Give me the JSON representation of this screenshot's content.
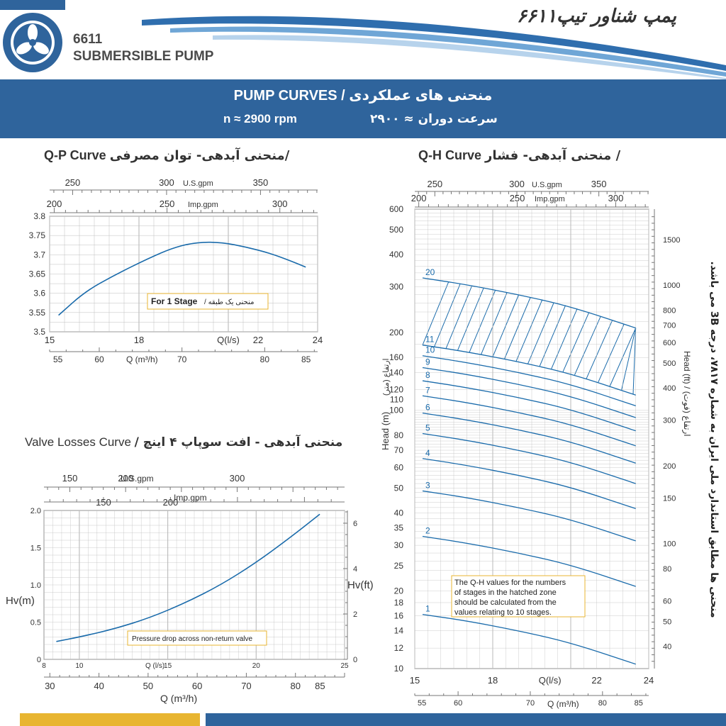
{
  "header": {
    "model_line1": "6611",
    "model_line2": "SUBMERSIBLE PUMP",
    "title_fa": "پمپ شناور تیپ۶۶۱۱"
  },
  "banner": {
    "title": "PUMP CURVES  /  منحنی های عملکردی",
    "speed_en": "n ≈ 2900 rpm",
    "speed_fa": "سرعت دوران ≈ ۲۹۰۰"
  },
  "side_note": "منحنی ها مطابق استاندارد ملی ایران به شماره ۷۸۱۷، درجه 3B می باشد.",
  "colors": {
    "brand_blue": "#2f649c",
    "curve_blue": "#1a6bab",
    "accent_yellow": "#e8b531",
    "grid": "#bfbfbf"
  },
  "qp": {
    "title_en": "Q-P Curve",
    "title_fa": "منحنی آبدهی- توان مصرفی/",
    "note_en": "For 1 Stage",
    "note_fa": " / منحنی یک طبقه"
  },
  "qh": {
    "title_en": "Q-H Curve",
    "title_fa": "منحنی آبدهی- فشار /",
    "note": [
      "The Q-H values for the numbers",
      "of stages in the hatched zone",
      "should be calculated from the",
      "values relating to 10 stages."
    ]
  },
  "valve": {
    "title_en": "Valve Losses Curve",
    "title_fa": "/ منحنی آبدهی - افت سوپاپ ۴ اینچ",
    "note": "Pressure drop across non-return valve"
  },
  "chart_data": [
    {
      "type": "line",
      "name": "qp",
      "title": "Q-P Curve / منحنی آبدهی- توان مصرفی",
      "xlabel": "Q(l/s)",
      "xlabel2": "Q (m³/h)",
      "xlim": [
        15,
        24
      ],
      "ylim": [
        3.5,
        3.8
      ],
      "xticks": [
        15,
        18,
        21,
        22,
        24
      ],
      "xtick_labels": [
        "15",
        "18",
        "Q(l/s)",
        "22",
        "24"
      ],
      "yticks": [
        3.5,
        3.55,
        3.6,
        3.65,
        3.7,
        3.75,
        3.8
      ],
      "m3h_ticks": [
        55,
        60,
        70,
        80,
        85
      ],
      "usgpm_label": "U.S.gpm",
      "usgpm_ticks": [
        250,
        300,
        350
      ],
      "impgpm_label": "Imp.gpm",
      "impgpm_ticks": [
        200,
        250,
        300
      ],
      "series": [
        {
          "x": [
            15.3,
            16.2,
            17.2,
            18.3,
            19.2,
            20.0,
            20.8,
            21.6,
            22.4,
            23.1,
            23.6
          ],
          "values": [
            3.543,
            3.605,
            3.648,
            3.69,
            3.72,
            3.733,
            3.732,
            3.72,
            3.704,
            3.684,
            3.668
          ]
        }
      ]
    },
    {
      "type": "line",
      "name": "qh",
      "title": "Q-H Curve / منحنی آبدهی- فشار",
      "xlabel": "Q(l/s)",
      "xlabel2": "Q (m³/h)",
      "ylabel": "Head (m)",
      "ylabel_fa": "ارتفاع (متر)",
      "ylabel_right": "Head (ft) / ارتفاع (فوت)",
      "yscale": "log",
      "xlim": [
        15,
        24
      ],
      "ylim": [
        10,
        600
      ],
      "xtick_labels": [
        "15",
        "18",
        "Q(l/s)",
        "22",
        "24"
      ],
      "xticks": [
        15,
        18,
        20.2,
        22,
        24
      ],
      "yticks": [
        10,
        12,
        14,
        16,
        18,
        20,
        25,
        30,
        35,
        40,
        50,
        60,
        70,
        80,
        100,
        110,
        120,
        140,
        160,
        200,
        300,
        400,
        500,
        600
      ],
      "ft_ticks": [
        40,
        50,
        60,
        80,
        100,
        150,
        200,
        300,
        400,
        500,
        600,
        700,
        800,
        1000,
        1500
      ],
      "m3h_ticks": [
        55,
        60,
        70,
        80,
        85
      ],
      "usgpm_label": "U.S.gpm",
      "usgpm_ticks": [
        250,
        300,
        350
      ],
      "impgpm_label": "Imp.gpm",
      "impgpm_ticks": [
        200,
        250,
        300
      ],
      "x": [
        15.3,
        17,
        19,
        21,
        23.5
      ],
      "series": [
        {
          "name": "1",
          "values": [
            16.2,
            15.3,
            14.0,
            12.6,
            10.4
          ]
        },
        {
          "name": "2",
          "values": [
            32.5,
            30.6,
            28.0,
            25.2,
            20.8
          ]
        },
        {
          "name": "3",
          "values": [
            48.7,
            45.9,
            42.0,
            37.8,
            31.2
          ]
        },
        {
          "name": "4",
          "values": [
            65,
            61.2,
            56,
            50.4,
            41.6
          ]
        },
        {
          "name": "5",
          "values": [
            81.2,
            76.5,
            70,
            63,
            52
          ]
        },
        {
          "name": "6",
          "values": [
            97.5,
            91.8,
            84,
            75.6,
            62.4
          ]
        },
        {
          "name": "7",
          "values": [
            113.7,
            107.1,
            98,
            88.2,
            72.8
          ]
        },
        {
          "name": "8",
          "values": [
            130,
            122.4,
            112,
            100.8,
            83.2
          ]
        },
        {
          "name": "9",
          "values": [
            146.2,
            137.7,
            126,
            113.4,
            93.6
          ]
        },
        {
          "name": "10",
          "values": [
            162.5,
            153,
            140,
            126,
            104
          ]
        },
        {
          "name": "11",
          "values": [
            178.7,
            168.3,
            154,
            138.6,
            114.4
          ]
        },
        {
          "name": "20",
          "values": [
            325,
            306,
            280,
            252,
            208
          ]
        }
      ]
    },
    {
      "type": "line",
      "name": "valve",
      "title": "Valve Losses Curve / منحنی آبدهی - افت سوپاپ ۴ اینچ",
      "xlabel": "Q (l/s)",
      "xlabel2": "Q (m³/h)",
      "ylabel": "Hv(m)",
      "ylabel_right": "Hv(ft)",
      "xlim": [
        8,
        25
      ],
      "ylim": [
        0,
        2.0
      ],
      "xticks": [
        8,
        10,
        15,
        20,
        25
      ],
      "yticks": [
        0,
        0.5,
        1.0,
        1.5,
        2.0
      ],
      "ft_ticks": [
        0,
        2,
        4,
        6
      ],
      "m3h_ticks": [
        30,
        40,
        50,
        60,
        70,
        80,
        85
      ],
      "usgpm_label": "U.S.gpm",
      "usgpm_ticks": [
        150,
        200,
        300
      ],
      "impgpm_label": "Imp.gpm",
      "impgpm_ticks": [
        150,
        200
      ],
      "series": [
        {
          "x": [
            8.7,
            10,
            12,
            14,
            16,
            18,
            20,
            22,
            23.6
          ],
          "values": [
            0.24,
            0.3,
            0.41,
            0.56,
            0.76,
            1.0,
            1.3,
            1.65,
            1.95
          ]
        }
      ]
    }
  ]
}
